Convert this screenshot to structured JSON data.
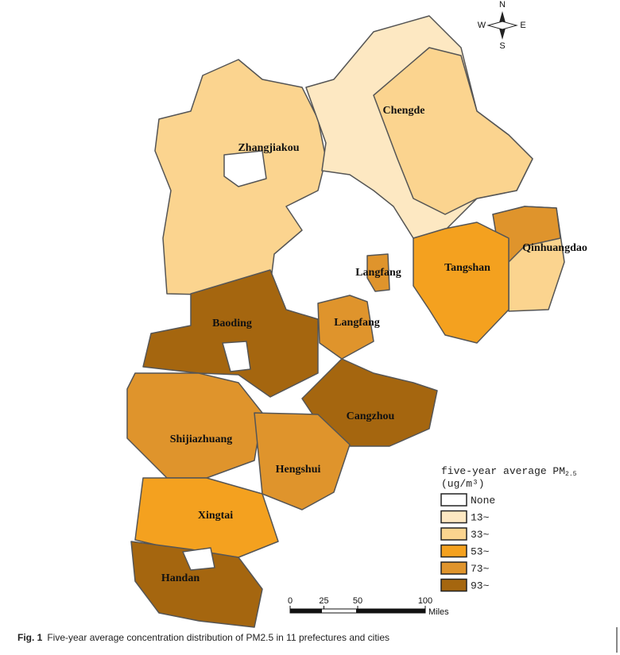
{
  "compass": {
    "n": "N",
    "s": "S",
    "e": "E",
    "w": "W"
  },
  "regions": [
    {
      "label": "Zhangjiakou"
    },
    {
      "label": "Chengde"
    },
    {
      "label": "Qinhuangdao"
    },
    {
      "label": "Tangshan"
    },
    {
      "label": "Langfang"
    },
    {
      "label": "Baoding"
    },
    {
      "label": "Langfang"
    },
    {
      "label": "Cangzhou"
    },
    {
      "label": "Shijiazhuang"
    },
    {
      "label": "Hengshui"
    },
    {
      "label": "Xingtai"
    },
    {
      "label": "Handan"
    }
  ],
  "legend": {
    "title": "five-year average PM",
    "title_sub": "2.5",
    "unit": "(ug/m³)",
    "items": [
      {
        "label": "None",
        "color": "#ffffff"
      },
      {
        "label": "13~",
        "color": "#fde8c2"
      },
      {
        "label": "33~",
        "color": "#fbd48f"
      },
      {
        "label": "53~",
        "color": "#f4a11f"
      },
      {
        "label": "73~",
        "color": "#df942c"
      },
      {
        "label": "93~",
        "color": "#a5660f"
      }
    ]
  },
  "scale_bar": {
    "ticks": [
      0,
      25,
      50,
      100
    ],
    "unit": "Miles"
  },
  "caption": {
    "label": "Fig. 1",
    "text": "Five-year average concentration distribution of PM2.5 in 11 prefectures and cities"
  }
}
